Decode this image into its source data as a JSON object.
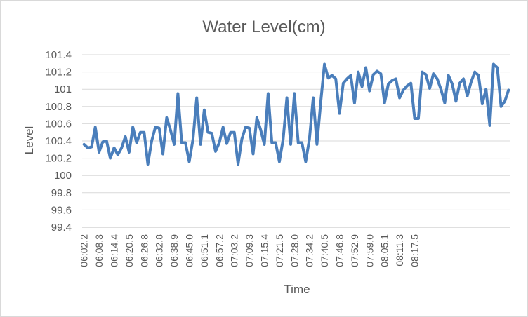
{
  "chart_data": {
    "type": "line",
    "title": "Water Level(cm)",
    "xlabel": "Time",
    "ylabel": "Level",
    "ylim": [
      99.4,
      101.4
    ],
    "y_tick_step": 0.2,
    "y_tick_labels": [
      "101.4",
      "101.2",
      "101",
      "100.8",
      "100.6",
      "100.4",
      "100.2",
      "100",
      "99.8",
      "99.6",
      "99.4"
    ],
    "grid": "horizontal",
    "legend": "none",
    "line_color": "#4a7ebb",
    "tick_labels": [
      "06:02.2",
      "06:08.3",
      "06:14.4",
      "06:20.5",
      "06:26.8",
      "06:32.8",
      "06:38.9",
      "06:45.0",
      "06:51.1",
      "06:57.2",
      "07:03.2",
      "07:09.3",
      "07:15.4",
      "07:21.5",
      "07:28.0",
      "07:34.2",
      "07:40.5",
      "07:46.8",
      "07:52.9",
      "07:59.0",
      "08:05.1",
      "08:11.3",
      "08:17.5"
    ],
    "tick_every": 4,
    "series": [
      {
        "values": [
          100.36,
          100.32,
          100.33,
          100.56,
          100.27,
          100.39,
          100.4,
          100.2,
          100.32,
          100.24,
          100.32,
          100.45,
          100.27,
          100.56,
          100.38,
          100.5,
          100.5,
          100.13,
          100.4,
          100.56,
          100.55,
          100.25,
          100.67,
          100.53,
          100.36,
          100.95,
          100.38,
          100.38,
          100.16,
          100.42,
          100.9,
          100.36,
          100.76,
          100.5,
          100.49,
          100.28,
          100.38,
          100.56,
          100.37,
          100.5,
          100.5,
          100.13,
          100.42,
          100.56,
          100.55,
          100.25,
          100.67,
          100.53,
          100.36,
          100.95,
          100.38,
          100.38,
          100.16,
          100.42,
          100.9,
          100.36,
          100.95,
          100.38,
          100.38,
          100.16,
          100.42,
          100.9,
          100.36,
          100.85,
          101.29,
          101.13,
          101.16,
          101.12,
          100.72,
          101.07,
          101.12,
          101.16,
          100.84,
          101.2,
          101.03,
          101.25,
          100.98,
          101.17,
          101.21,
          101.18,
          100.84,
          101.06,
          101.1,
          101.12,
          100.9,
          100.99,
          101.04,
          101.07,
          100.66,
          100.66,
          101.2,
          101.17,
          101.01,
          101.18,
          101.12,
          101.0,
          100.84,
          101.16,
          101.06,
          100.86,
          101.07,
          101.12,
          100.92,
          101.08,
          101.2,
          101.16,
          100.83,
          101.0,
          100.58,
          101.29,
          101.25,
          100.8,
          100.86,
          100.99
        ]
      }
    ]
  }
}
